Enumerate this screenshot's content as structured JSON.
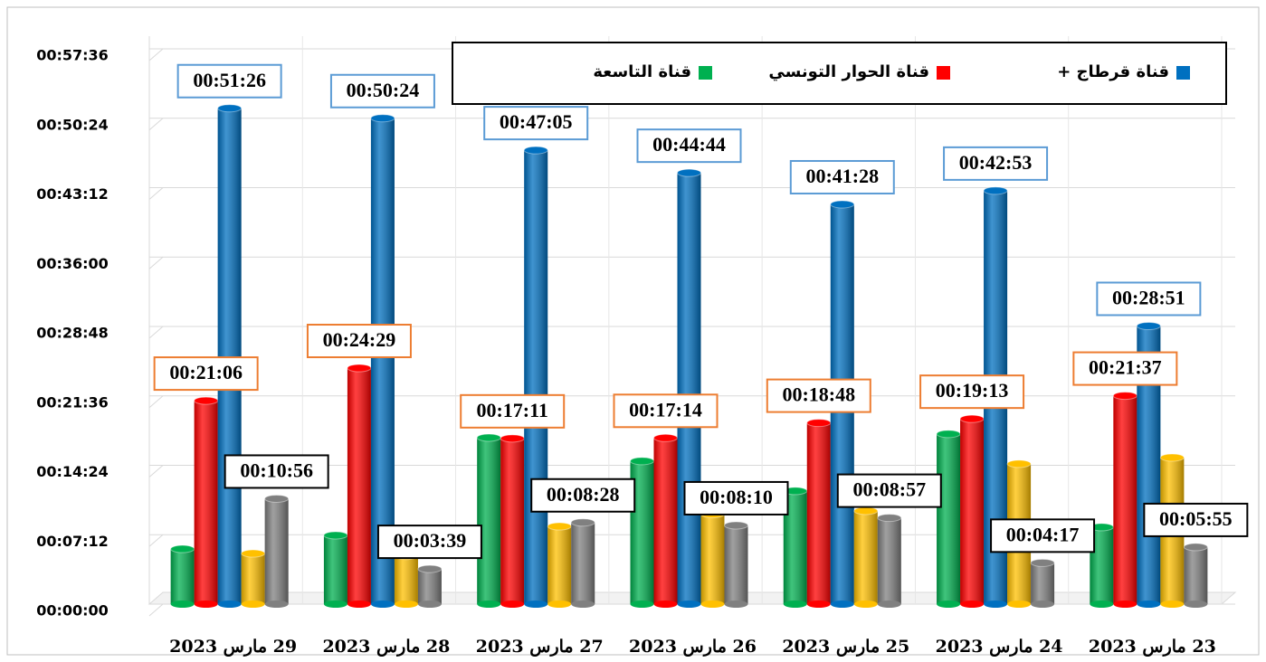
{
  "chart_data": {
    "type": "bar",
    "categories": [
      "29 مارس 2023",
      "28 مارس 2023",
      "27 مارس 2023",
      "26 مارس 2023",
      "25 مارس 2023",
      "24 مارس 2023",
      "23 مارس 2023"
    ],
    "series": [
      {
        "name": "قناة التاسعة",
        "color": "#00b050",
        "values": [
          343,
          428,
          1036,
          890,
          704,
          1059,
          479
        ]
      },
      {
        "name": "قناة الحوار التونسي",
        "color": "#ff0000",
        "values": [
          1266,
          1469,
          1031,
          1034,
          1128,
          1153,
          1297
        ],
        "value_labels": [
          "00:21:06",
          "00:24:29",
          "00:17:11",
          "00:17:14",
          "00:18:48",
          "00:19:13",
          "00:21:37"
        ]
      },
      {
        "name": "قناة قرطاج +",
        "color": "#0070c0",
        "values": [
          3086,
          3024,
          2825,
          2684,
          2488,
          2573,
          1731
        ],
        "value_labels": [
          "00:51:26",
          "00:50:24",
          "00:47:05",
          "00:44:44",
          "00:41:28",
          "00:42:53",
          "00:28:51"
        ]
      },
      {
        "color": "#ffc000",
        "values": [
          315,
          300,
          484,
          560,
          580,
          873,
          912
        ]
      },
      {
        "color": "#808080",
        "values": [
          656,
          219,
          508,
          490,
          537,
          257,
          355
        ],
        "value_labels": [
          "00:10:56",
          "00:03:39",
          "00:08:28",
          "00:08:10",
          "00:08:57",
          "00:04:17",
          "00:05:55"
        ]
      }
    ],
    "ylim": [
      0,
      3456
    ],
    "yticks": [
      {
        "value": 0,
        "label": "00:00:00"
      },
      {
        "value": 432,
        "label": "00:07:12"
      },
      {
        "value": 864,
        "label": "00:14:24"
      },
      {
        "value": 1296,
        "label": "00:21:36"
      },
      {
        "value": 1728,
        "label": "00:28:48"
      },
      {
        "value": 2160,
        "label": "00:36:00"
      },
      {
        "value": 2592,
        "label": "00:43:12"
      },
      {
        "value": 3024,
        "label": "00:50:24"
      },
      {
        "value": 3456,
        "label": "00:57:36"
      }
    ],
    "grid": true,
    "legend": "top"
  }
}
